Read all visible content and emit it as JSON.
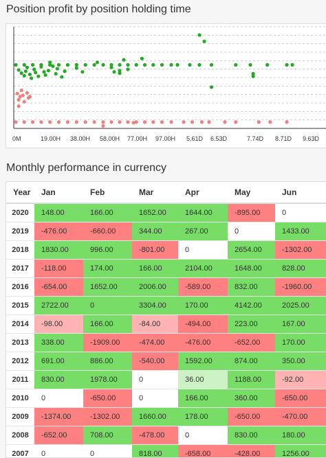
{
  "scatter_title": "Position profit by position holding time",
  "table_title": "Monthly performance in currency",
  "colors": {
    "profit": "#22aa22",
    "loss": "#f08080"
  },
  "chart_data": {
    "type": "scatter",
    "title": "Position profit by position holding time",
    "xticks": [
      "0M",
      "19.00H",
      "38.00H",
      "58.00H",
      "77.00H",
      "97.00H",
      "5.61D",
      "6.53D",
      "7.74D",
      "8.71D",
      "9.63D"
    ],
    "grid": true,
    "series": [
      {
        "color": "#22aa22",
        "points": [
          [
            0.0,
            2
          ],
          [
            0.3,
            2
          ],
          [
            0.6,
            2
          ],
          [
            0.9,
            2
          ],
          [
            1.2,
            2
          ],
          [
            1.5,
            2
          ],
          [
            1.8,
            2
          ],
          [
            2.1,
            2
          ],
          [
            2.4,
            2
          ],
          [
            2.7,
            2
          ],
          [
            3.0,
            2
          ],
          [
            3.3,
            2
          ],
          [
            3.6,
            2
          ],
          [
            3.9,
            2
          ],
          [
            4.2,
            2
          ],
          [
            4.5,
            2
          ],
          [
            4.8,
            2
          ],
          [
            5.1,
            2
          ],
          [
            5.4,
            2
          ],
          [
            5.6,
            2
          ],
          [
            6.0,
            2
          ],
          [
            6.4,
            2
          ],
          [
            6.9,
            2
          ],
          [
            7.6,
            2
          ],
          [
            8.0,
            2
          ],
          [
            8.6,
            2
          ],
          [
            9.3,
            2
          ],
          [
            9.5,
            2
          ],
          [
            0.1,
            1.2
          ],
          [
            0.2,
            0.7
          ],
          [
            0.3,
            0.3
          ],
          [
            0.35,
            1.0
          ],
          [
            0.4,
            1.6
          ],
          [
            0.5,
            0.5
          ],
          [
            0.55,
            -0.1
          ],
          [
            0.65,
            1.3
          ],
          [
            0.7,
            0.8
          ],
          [
            0.8,
            0.2
          ],
          [
            0.9,
            1.7
          ],
          [
            1.0,
            0.9
          ],
          [
            1.05,
            0.4
          ],
          [
            1.15,
            1.1
          ],
          [
            1.2,
            2.4
          ],
          [
            1.3,
            1.8
          ],
          [
            1.4,
            0.6
          ],
          [
            1.45,
            1.4
          ],
          [
            1.6,
            0.1
          ],
          [
            1.7,
            1.0
          ],
          [
            2.1,
            1.5
          ],
          [
            2.3,
            0.9
          ],
          [
            2.8,
            2.4
          ],
          [
            3.3,
            1.6
          ],
          [
            3.4,
            0.9
          ],
          [
            3.6,
            1.1
          ],
          [
            3.6,
            0.7
          ],
          [
            3.75,
            2.8
          ],
          [
            3.9,
            1.3
          ],
          [
            4.4,
            3.0
          ],
          [
            6.4,
            6.7
          ],
          [
            6.6,
            5.7
          ],
          [
            6.9,
            -1.5
          ],
          [
            8.1,
            0.6
          ],
          [
            8.1,
            0.2
          ]
        ]
      },
      {
        "color": "#f08080",
        "points": [
          [
            0.0,
            -7
          ],
          [
            0.3,
            -7
          ],
          [
            0.6,
            -7
          ],
          [
            0.9,
            -7
          ],
          [
            1.2,
            -7
          ],
          [
            1.5,
            -7
          ],
          [
            1.8,
            -7
          ],
          [
            2.1,
            -7
          ],
          [
            2.4,
            -7
          ],
          [
            2.7,
            -7
          ],
          [
            3.0,
            -7
          ],
          [
            3.3,
            -7
          ],
          [
            3.6,
            -7
          ],
          [
            3.9,
            -7
          ],
          [
            4.2,
            -7
          ],
          [
            4.5,
            -7
          ],
          [
            4.8,
            -7
          ],
          [
            5.1,
            -7
          ],
          [
            5.4,
            -7
          ],
          [
            5.8,
            -7
          ],
          [
            6.1,
            -7
          ],
          [
            6.5,
            -7
          ],
          [
            6.8,
            -7
          ],
          [
            7.3,
            -7
          ],
          [
            7.6,
            -7
          ],
          [
            8.3,
            -7
          ],
          [
            8.7,
            -7
          ],
          [
            9.3,
            -7
          ],
          [
            0.05,
            -2.5
          ],
          [
            0.1,
            -3.5
          ],
          [
            0.1,
            -4.5
          ],
          [
            0.15,
            -3.0
          ],
          [
            0.2,
            -2.0
          ],
          [
            0.25,
            -2.8
          ],
          [
            0.3,
            -3.8
          ],
          [
            0.4,
            -2.4
          ],
          [
            0.45,
            -3.2
          ],
          [
            0.5,
            -3.0
          ],
          [
            3.0,
            -7.6
          ],
          [
            4.1,
            -7.1
          ]
        ]
      }
    ]
  },
  "table": {
    "headers": [
      "Year",
      "Jan",
      "Feb",
      "Mar",
      "Apr",
      "May",
      "Jun"
    ],
    "rows": [
      {
        "year": "2020",
        "cells": [
          [
            "148.00",
            "pos"
          ],
          [
            "166.00",
            "pos"
          ],
          [
            "1652.00",
            "pos"
          ],
          [
            "1644.00",
            "pos"
          ],
          [
            "-895.00",
            "neg"
          ],
          [
            "0",
            "zero"
          ]
        ]
      },
      {
        "year": "2019",
        "cells": [
          [
            "-476.00",
            "neg"
          ],
          [
            "-660.00",
            "neg"
          ],
          [
            "344.00",
            "pos"
          ],
          [
            "267.00",
            "pos"
          ],
          [
            "0",
            "zero"
          ],
          [
            "1433.00",
            "pos"
          ]
        ]
      },
      {
        "year": "2018",
        "cells": [
          [
            "1830.00",
            "pos"
          ],
          [
            "996.00",
            "pos"
          ],
          [
            "-801.00",
            "neg"
          ],
          [
            "0",
            "zero"
          ],
          [
            "2654.00",
            "pos"
          ],
          [
            "-1302.00",
            "neg"
          ]
        ]
      },
      {
        "year": "2017",
        "cells": [
          [
            "-118.00",
            "neg"
          ],
          [
            "174.00",
            "pos"
          ],
          [
            "166.00",
            "pos"
          ],
          [
            "2104.00",
            "pos"
          ],
          [
            "1648.00",
            "pos"
          ],
          [
            "828.00",
            "pos"
          ]
        ]
      },
      {
        "year": "2016",
        "cells": [
          [
            "-654.00",
            "neg"
          ],
          [
            "1652.00",
            "pos"
          ],
          [
            "2006.00",
            "pos"
          ],
          [
            "-589.00",
            "neg"
          ],
          [
            "832.00",
            "pos"
          ],
          [
            "-1960.00",
            "neg"
          ]
        ]
      },
      {
        "year": "2015",
        "cells": [
          [
            "2722.00",
            "pos"
          ],
          [
            "0",
            "pos"
          ],
          [
            "3304.00",
            "pos"
          ],
          [
            "170.00",
            "pos"
          ],
          [
            "4142.00",
            "pos"
          ],
          [
            "2025.00",
            "pos"
          ]
        ]
      },
      {
        "year": "2014",
        "cells": [
          [
            "-98.00",
            "lneg"
          ],
          [
            "166.00",
            "pos"
          ],
          [
            "-84.00",
            "lneg"
          ],
          [
            "-494.00",
            "neg"
          ],
          [
            "223.00",
            "pos"
          ],
          [
            "167.00",
            "pos"
          ]
        ]
      },
      {
        "year": "2013",
        "cells": [
          [
            "338.00",
            "pos"
          ],
          [
            "-1909.00",
            "neg"
          ],
          [
            "-474.00",
            "neg"
          ],
          [
            "-476.00",
            "neg"
          ],
          [
            "-652.00",
            "neg"
          ],
          [
            "170.00",
            "pos"
          ]
        ]
      },
      {
        "year": "2012",
        "cells": [
          [
            "691.00",
            "pos"
          ],
          [
            "886.00",
            "pos"
          ],
          [
            "-540.00",
            "neg"
          ],
          [
            "1592.00",
            "pos"
          ],
          [
            "874.00",
            "pos"
          ],
          [
            "350.00",
            "pos"
          ]
        ]
      },
      {
        "year": "2011",
        "cells": [
          [
            "830.00",
            "pos"
          ],
          [
            "1978.00",
            "pos"
          ],
          [
            "0",
            "zero"
          ],
          [
            "36.00",
            "lpos"
          ],
          [
            "1188.00",
            "pos"
          ],
          [
            "-92.00",
            "lneg"
          ]
        ]
      },
      {
        "year": "2010",
        "cells": [
          [
            "0",
            "zero"
          ],
          [
            "-650.00",
            "neg"
          ],
          [
            "0",
            "zero"
          ],
          [
            "166.00",
            "pos"
          ],
          [
            "360.00",
            "pos"
          ],
          [
            "-650.00",
            "neg"
          ]
        ]
      },
      {
        "year": "2009",
        "cells": [
          [
            "-1374.00",
            "neg"
          ],
          [
            "-1302.00",
            "neg"
          ],
          [
            "1660.00",
            "pos"
          ],
          [
            "178.00",
            "pos"
          ],
          [
            "-650.00",
            "neg"
          ],
          [
            "-470.00",
            "neg"
          ]
        ]
      },
      {
        "year": "2008",
        "cells": [
          [
            "-652.00",
            "neg"
          ],
          [
            "708.00",
            "pos"
          ],
          [
            "-478.00",
            "neg"
          ],
          [
            "0",
            "zero"
          ],
          [
            "830.00",
            "pos"
          ],
          [
            "180.00",
            "pos"
          ]
        ]
      },
      {
        "year": "2007",
        "cells": [
          [
            "0",
            "zero"
          ],
          [
            "0",
            "zero"
          ],
          [
            "818.00",
            "pos"
          ],
          [
            "-658.00",
            "neg"
          ],
          [
            "-428.00",
            "neg"
          ],
          [
            "1256.00",
            "pos"
          ]
        ]
      }
    ]
  }
}
